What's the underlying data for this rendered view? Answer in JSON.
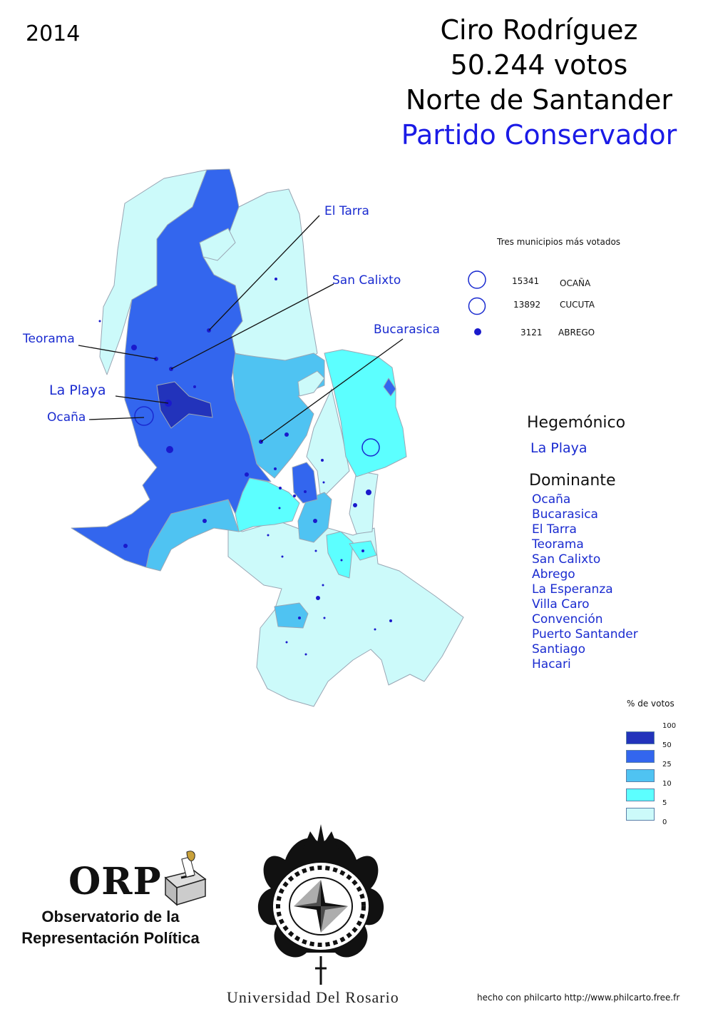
{
  "year": "2014",
  "title": {
    "candidate": "Ciro Rodríguez",
    "votes": "50.244 votos",
    "department": "Norte de Santander",
    "party": "Partido Conservador"
  },
  "map_labels": {
    "el_tarra": "El Tarra",
    "san_calixto": "San Calixto",
    "bucarasica": "Bucarasica",
    "teorama": "Teorama",
    "la_playa": "La Playa",
    "ocana": "Ocaña"
  },
  "top_municipalities": {
    "title": "Tres municipios más votados",
    "rows": [
      {
        "votes": "15341",
        "name": "OCAÑA"
      },
      {
        "votes": "13892",
        "name": "CUCUTA"
      },
      {
        "votes": "3121",
        "name": "ABREGO"
      }
    ]
  },
  "categories": {
    "hegemonic": {
      "title": "Hegemónico",
      "items": [
        "La Playa"
      ]
    },
    "dominant": {
      "title": "Dominante",
      "items": [
        "Ocaña",
        "Bucarasica",
        "El Tarra",
        "Teorama",
        "San Calixto",
        "Abrego",
        "La Esperanza",
        "Villa Caro",
        "Convención",
        "Puerto Santander",
        "Santiago",
        "Hacari"
      ]
    }
  },
  "vote_scale": {
    "title": "% de votos",
    "breaks": [
      "100",
      "50",
      "25",
      "10",
      "5",
      "0"
    ],
    "colors": [
      "#2233bb",
      "#3366ee",
      "#4fc3f2",
      "#5cffff",
      "#ccfafa"
    ]
  },
  "logos": {
    "orp_word": "ORP",
    "orp_name": "Observatorio de la Representación Política",
    "university": "Universidad Del Rosario"
  },
  "credit": "hecho con philcarto http://www.philcarto.free.fr"
}
